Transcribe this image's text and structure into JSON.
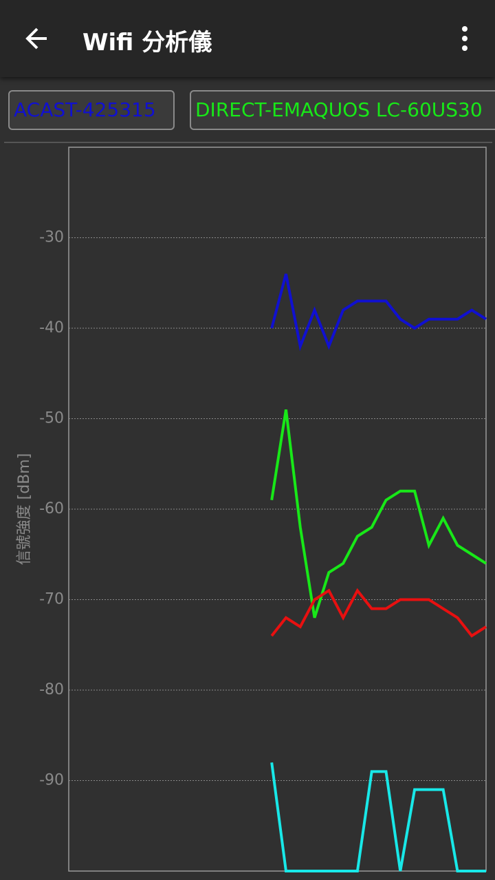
{
  "header": {
    "title": "Wifi 分析儀"
  },
  "chart_data": {
    "type": "line",
    "y_label": "信號強度 [dBm]",
    "x": [
      0,
      1,
      2,
      3,
      4,
      5,
      6,
      7,
      8,
      9,
      10,
      11,
      12,
      13,
      14,
      15
    ],
    "xlim": [
      -14.2,
      15
    ],
    "ylim": [
      -100,
      -20
    ],
    "yticks": [
      -90,
      -80,
      -70,
      -60,
      -50,
      -40,
      -30
    ],
    "grid": true,
    "series": [
      {
        "name": "ACAST-425315",
        "color": "#1010d0",
        "values": [
          -40,
          -34,
          -42,
          -38,
          -42,
          -38,
          -37,
          -37,
          -37,
          -39,
          -40,
          -39,
          -39,
          -39,
          -38,
          -39
        ]
      },
      {
        "name": "DIRECT-EMAQUOS LC-60US30",
        "color": "#18e818",
        "values": [
          -59,
          -49,
          -62,
          -72,
          -67,
          -66,
          -63,
          -62,
          -59,
          -58,
          -58,
          -64,
          -61,
          -64,
          -65,
          -66
        ]
      },
      {
        "color": "#e81010",
        "values": [
          -74,
          -72,
          -73,
          -70,
          -69,
          -72,
          -69,
          -71,
          -71,
          -70,
          -70,
          -70,
          -71,
          -72,
          -74,
          -73
        ]
      },
      {
        "color": "#18e8e8",
        "values": [
          -88,
          -100,
          -100,
          -100,
          -100,
          -100,
          -100,
          -89,
          -89,
          -100,
          -91,
          -91,
          -91,
          -100,
          -100,
          -100
        ]
      }
    ]
  }
}
